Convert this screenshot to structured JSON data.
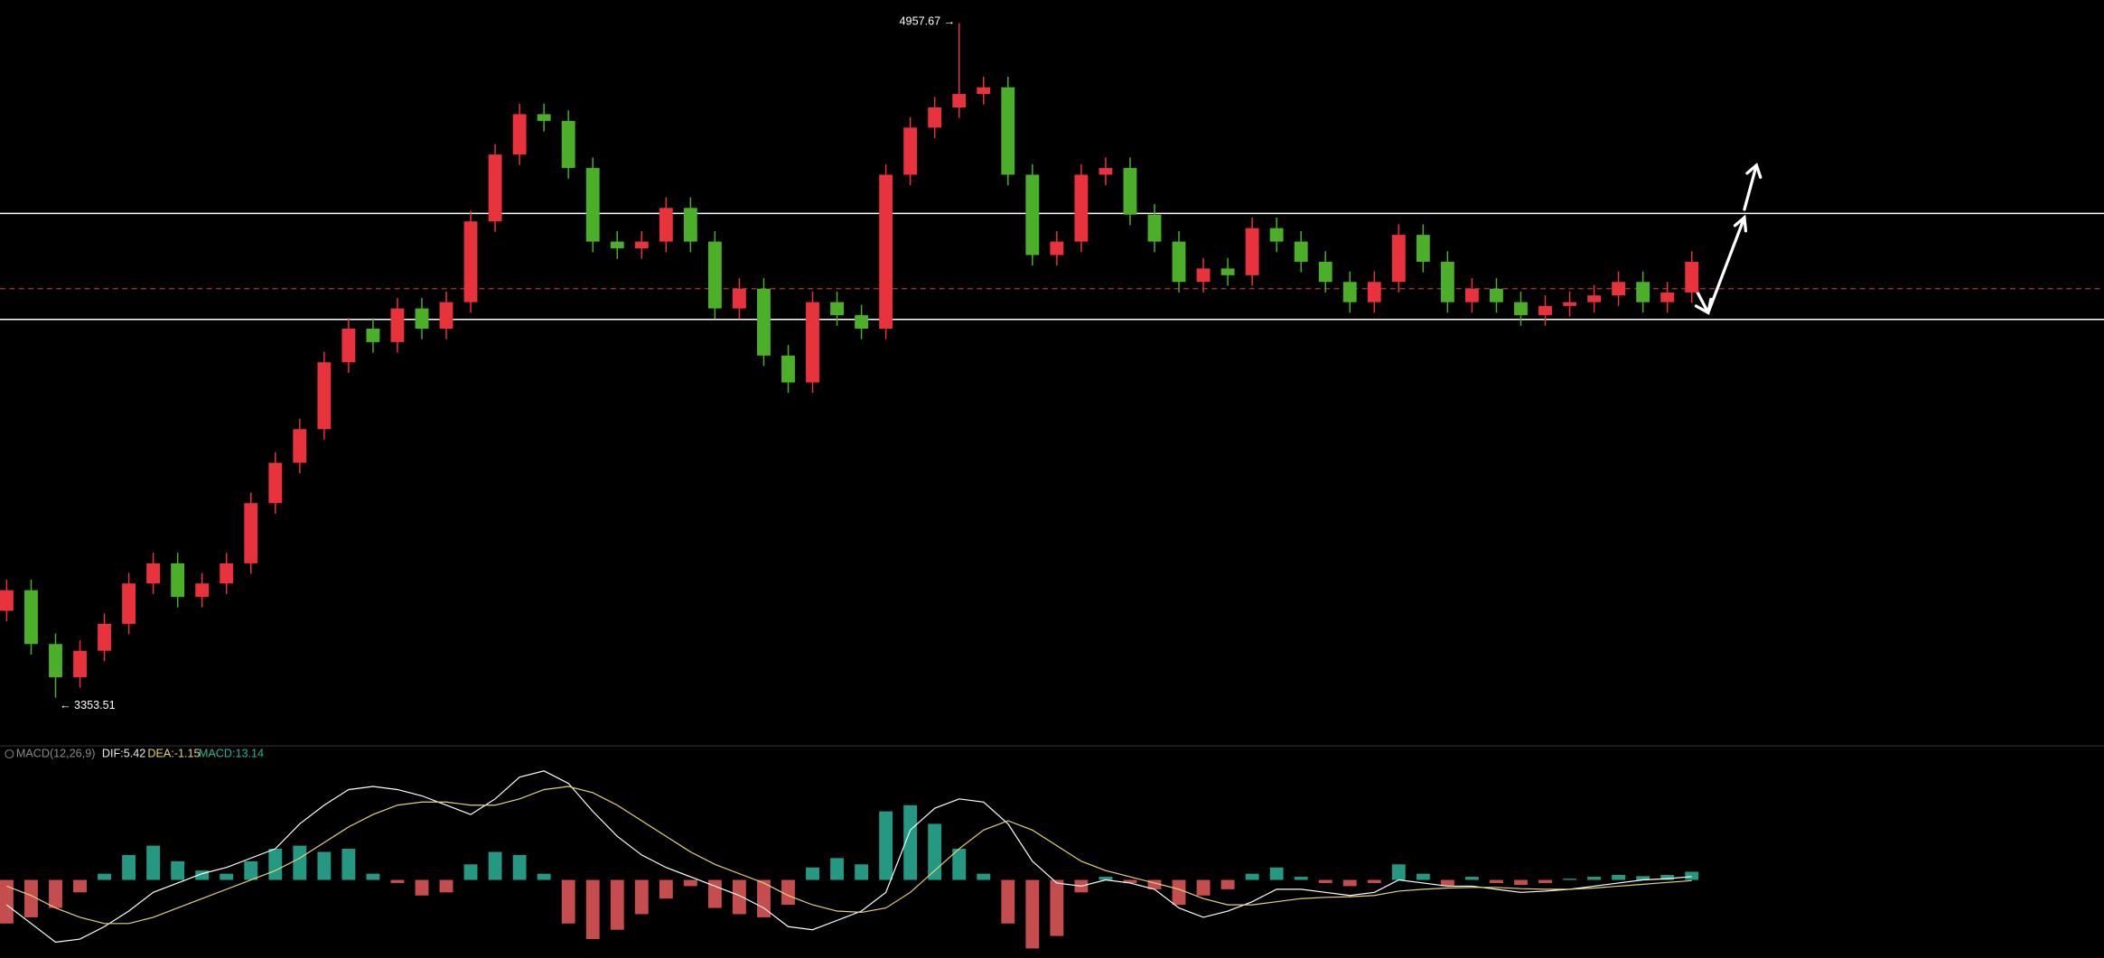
{
  "chart_data": [
    {
      "type": "candlestick",
      "open": [
        3560,
        3609,
        3481,
        3402,
        3465,
        3529,
        3625,
        3673,
        3593,
        3625,
        3673,
        3816,
        3912,
        3992,
        4151,
        4231,
        4199,
        4279,
        4231,
        4294,
        4486,
        4645,
        4741,
        4725,
        4613,
        4438,
        4422,
        4438,
        4518,
        4438,
        4279,
        4326,
        4167,
        4103,
        4294,
        4263,
        4231,
        4597,
        4709,
        4757,
        4789,
        4805,
        4597,
        4406,
        4438,
        4597,
        4613,
        4502,
        4438,
        4342,
        4374,
        4358,
        4470,
        4438,
        4390,
        4342,
        4294,
        4342,
        4454,
        4390,
        4294,
        4326,
        4294,
        4263,
        4285,
        4294,
        4310,
        4342,
        4294,
        4317
      ],
      "high": [
        3634,
        3634,
        3506,
        3490,
        3554,
        3650,
        3698,
        3698,
        3650,
        3698,
        3841,
        3937,
        4017,
        4176,
        4256,
        4256,
        4304,
        4304,
        4319,
        4511,
        4670,
        4766,
        4766,
        4750,
        4638,
        4463,
        4463,
        4543,
        4543,
        4463,
        4351,
        4351,
        4192,
        4319,
        4319,
        4288,
        4622,
        4734,
        4782,
        4957.67,
        4830,
        4830,
        4622,
        4463,
        4622,
        4638,
        4638,
        4527,
        4463,
        4399,
        4399,
        4495,
        4495,
        4463,
        4415,
        4367,
        4367,
        4479,
        4479,
        4415,
        4351,
        4351,
        4319,
        4310,
        4319,
        4335,
        4367,
        4367,
        4342,
        4415
      ],
      "low": [
        3535,
        3456,
        3353.51,
        3377,
        3440,
        3504,
        3600,
        3568,
        3568,
        3600,
        3648,
        3791,
        3887,
        3967,
        4126,
        4174,
        4174,
        4206,
        4206,
        4269,
        4461,
        4620,
        4700,
        4588,
        4413,
        4397,
        4397,
        4413,
        4413,
        4254,
        4254,
        4142,
        4078,
        4078,
        4238,
        4206,
        4206,
        4572,
        4684,
        4732,
        4764,
        4572,
        4381,
        4381,
        4413,
        4572,
        4477,
        4413,
        4317,
        4317,
        4333,
        4333,
        4413,
        4365,
        4317,
        4269,
        4269,
        4317,
        4365,
        4269,
        4269,
        4269,
        4238,
        4238,
        4260,
        4269,
        4285,
        4269,
        4269,
        4292
      ],
      "close": [
        3609,
        3481,
        3402,
        3465,
        3529,
        3625,
        3673,
        3593,
        3625,
        3673,
        3816,
        3912,
        3992,
        4151,
        4231,
        4199,
        4279,
        4231,
        4294,
        4486,
        4645,
        4741,
        4725,
        4613,
        4438,
        4422,
        4438,
        4518,
        4438,
        4279,
        4326,
        4167,
        4103,
        4294,
        4263,
        4231,
        4597,
        4709,
        4757,
        4789,
        4805,
        4597,
        4406,
        4438,
        4597,
        4613,
        4502,
        4438,
        4342,
        4374,
        4358,
        4470,
        4438,
        4390,
        4342,
        4294,
        4342,
        4454,
        4390,
        4294,
        4326,
        4294,
        4263,
        4285,
        4294,
        4310,
        4342,
        4294,
        4317,
        4390
      ],
      "up_color": "#e8323c",
      "down_color": "#4caf2a",
      "ylim": [
        3242,
        5012
      ],
      "reference_lines": [
        {
          "value": 4505,
          "color": "#ffffff",
          "style": "solid"
        },
        {
          "value": 4253,
          "color": "#ffffff",
          "style": "solid"
        },
        {
          "value": 4326,
          "color": "#b5353a",
          "style": "dashed"
        }
      ],
      "high_label": "4957.67 →",
      "low_label": "← 3353.51"
    },
    {
      "type": "macd",
      "title": "MACD(12,26,9)",
      "dif_label": "DIF:5.42",
      "dea_label": "DEA:-1.15",
      "macd_label": "MACD:13.14",
      "ylim": [
        -125,
        213
      ],
      "series": [
        {
          "name": "MACD",
          "positive_color": "#2bb39a",
          "negative_color": "#e85a5a",
          "values": [
            -70,
            -60,
            -45,
            -20,
            10,
            40,
            55,
            30,
            15,
            10,
            30,
            50,
            55,
            45,
            50,
            10,
            -5,
            -25,
            -20,
            25,
            45,
            40,
            10,
            -70,
            -95,
            -80,
            -55,
            -30,
            -10,
            -45,
            -55,
            -60,
            -40,
            20,
            35,
            25,
            110,
            120,
            90,
            50,
            10,
            -70,
            -110,
            -90,
            -20,
            5,
            -5,
            -15,
            -40,
            -25,
            -15,
            10,
            20,
            5,
            -5,
            -10,
            -5,
            25,
            10,
            -10,
            5,
            -5,
            -8,
            -5,
            2,
            5,
            8,
            6,
            8,
            13.14
          ]
        },
        {
          "name": "DIF",
          "color": "#ffffff",
          "values": [
            -40,
            -70,
            -100,
            -95,
            -75,
            -50,
            -20,
            -5,
            10,
            20,
            35,
            50,
            90,
            120,
            145,
            150,
            145,
            135,
            120,
            105,
            130,
            165,
            175,
            155,
            110,
            70,
            40,
            20,
            5,
            -10,
            -25,
            -45,
            -75,
            -80,
            -65,
            -50,
            -20,
            80,
            115,
            130,
            125,
            90,
            30,
            -5,
            -10,
            0,
            -5,
            -15,
            -45,
            -60,
            -50,
            -35,
            -15,
            -15,
            -20,
            -25,
            -20,
            0,
            -5,
            -10,
            -10,
            -15,
            -20,
            -18,
            -15,
            -10,
            -5,
            0,
            2,
            5.42
          ]
        },
        {
          "name": "DEA",
          "color": "#e6d27a",
          "values": [
            -10,
            -25,
            -45,
            -60,
            -70,
            -70,
            -60,
            -45,
            -30,
            -15,
            0,
            15,
            35,
            60,
            85,
            105,
            120,
            125,
            125,
            120,
            120,
            130,
            145,
            150,
            140,
            120,
            95,
            70,
            45,
            25,
            10,
            -5,
            -25,
            -40,
            -50,
            -52,
            -45,
            -20,
            15,
            50,
            80,
            95,
            80,
            55,
            30,
            15,
            5,
            -5,
            -15,
            -30,
            -40,
            -40,
            -35,
            -30,
            -28,
            -27,
            -25,
            -18,
            -15,
            -13,
            -12,
            -12,
            -14,
            -15,
            -15,
            -13,
            -10,
            -7,
            -4,
            -1.15
          ]
        }
      ]
    }
  ]
}
